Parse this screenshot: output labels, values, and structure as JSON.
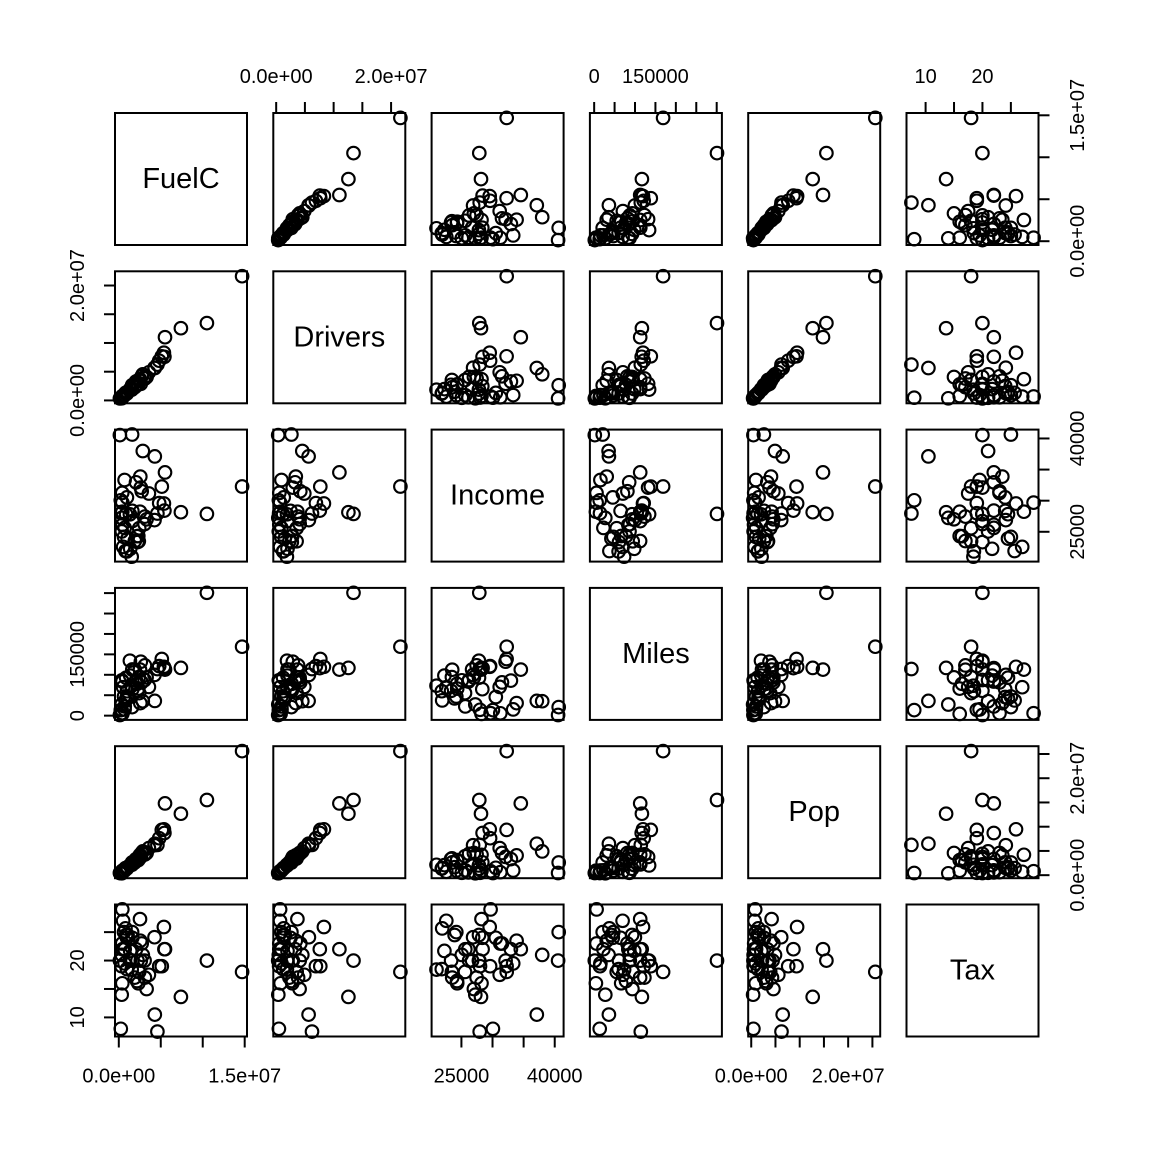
{
  "figure": {
    "background_color": "#ffffff",
    "foreground_color": "#000000",
    "description": "Scatterplot matrix (pairs plot) of six variables"
  },
  "chart_data": {
    "type": "scatter-matrix",
    "grid": 6,
    "point_style": {
      "shape": "open-circle",
      "color": "#000000",
      "radius_px": 6.3
    },
    "axis_padding_fraction": 0.04,
    "legend": "none",
    "variables": [
      {
        "name": "FuelC",
        "x_axis_side": "bottom",
        "y_axis_side": "right",
        "ticks": [
          {
            "value": 0,
            "label": "0.0e+00"
          },
          {
            "value": 5000000
          },
          {
            "value": 10000000
          },
          {
            "value": 15000000,
            "label": "1.5e+07"
          }
        ]
      },
      {
        "name": "Drivers",
        "x_axis_side": "top",
        "y_axis_side": "left",
        "ticks": [
          {
            "value": 0,
            "label": "0.0e+00"
          },
          {
            "value": 5000000
          },
          {
            "value": 10000000
          },
          {
            "value": 15000000
          },
          {
            "value": 20000000,
            "label": "2.0e+07"
          }
        ]
      },
      {
        "name": "Income",
        "x_axis_side": "bottom",
        "y_axis_side": "right",
        "ticks": [
          {
            "value": 25000,
            "label": "25000"
          },
          {
            "value": 30000
          },
          {
            "value": 35000
          },
          {
            "value": 40000,
            "label": "40000"
          }
        ]
      },
      {
        "name": "Miles",
        "x_axis_side": "top",
        "y_axis_side": "left",
        "ticks": [
          {
            "value": 0,
            "label": "0"
          },
          {
            "value": 50000
          },
          {
            "value": 100000
          },
          {
            "value": 150000,
            "label": "150000"
          },
          {
            "value": 200000
          },
          {
            "value": 250000
          },
          {
            "value": 300000
          }
        ]
      },
      {
        "name": "Pop",
        "x_axis_side": "bottom",
        "y_axis_side": "right",
        "ticks": [
          {
            "value": 0,
            "label": "0.0e+00"
          },
          {
            "value": 5000000
          },
          {
            "value": 10000000
          },
          {
            "value": 15000000
          },
          {
            "value": 20000000,
            "label": "2.0e+07"
          },
          {
            "value": 25000000
          }
        ]
      },
      {
        "name": "Tax",
        "x_axis_side": "top",
        "y_axis_side": "left",
        "ticks": [
          {
            "value": 10,
            "label": "10"
          },
          {
            "value": 15
          },
          {
            "value": 20,
            "label": "20"
          },
          {
            "value": 25
          }
        ]
      }
    ],
    "columns": [
      "FuelC",
      "Drivers",
      "Income",
      "Miles",
      "Pop",
      "Tax"
    ],
    "observations": [
      [
        2382507,
        3559897,
        23471,
        94440,
        3451586,
        18.0
      ],
      [
        235400,
        472211,
        30064,
        13628,
        457728,
        8.0
      ],
      [
        2428430,
        3550367,
        25578,
        55245,
        3907526,
        18.0
      ],
      [
        1358174,
        1961883,
        22257,
        98132,
        2072622,
        21.7
      ],
      [
        14691753,
        21623793,
        32275,
        168771,
        25599275,
        18.0
      ],
      [
        2048664,
        3287922,
        32949,
        85854,
        3322455,
        22.0
      ],
      [
        1583590,
        2651643,
        40640,
        20910,
        2608903,
        25.0
      ],
      [
        411066,
        545204,
        31255,
        5814,
        610212,
        23.0
      ],
      [
        130000,
        349344,
        40539,
        1534,
        453358,
        20.0
      ],
      [
        7400000,
        12570420,
        28145,
        116758,
        12679483,
        13.6
      ],
      [
        4600000,
        6230871,
        27940,
        114139,
        6250687,
        7.5
      ],
      [
        412599,
        770874,
        28221,
        4176,
        927206,
        16.0
      ],
      [
        621165,
        894866,
        24180,
        46811,
        958422,
        25.0
      ],
      [
        5122527,
        7674472,
        32259,
        138589,
        9348269,
        19.0
      ],
      [
        3314654,
        4076000,
        27011,
        93507,
        4577741,
        15.0
      ],
      [
        1611364,
        1973794,
        26723,
        112857,
        2220570,
        20.0
      ],
      [
        1317341,
        1886954,
        27816,
        134618,
        2007776,
        20.0
      ],
      [
        2164478,
        2708973,
        24294,
        77899,
        3046951,
        16.4
      ],
      [
        2232103,
        2719495,
        23334,
        60855,
        3335997,
        20.0
      ],
      [
        700674,
        915053,
        25623,
        22699,
        1012945,
        22.0
      ],
      [
        2555877,
        3420000,
        33872,
        30577,
        4085942,
        23.5
      ],
      [
        2855469,
        4549934,
        37992,
        35234,
        4902871,
        21.0
      ],
      [
        4810450,
        6915689,
        29612,
        121273,
        7618599,
        19.0
      ],
      [
        2621070,
        2893047,
        32101,
        132048,
        3774909,
        20.0
      ],
      [
        1537746,
        1860000,
        20993,
        73301,
        2137505,
        18.4
      ],
      [
        3107134,
        3820000,
        27445,
        123039,
        4288136,
        17.0
      ],
      [
        512744,
        660000,
        22569,
        69567,
        697707,
        27.0
      ],
      [
        865616,
        1200000,
        27829,
        92791,
        1307699,
        24.5
      ],
      [
        967336,
        1300000,
        30529,
        45683,
        1521793,
        24.0
      ],
      [
        687249,
        920000,
        33332,
        15250,
        959234,
        19.5
      ],
      [
        4288428,
        5648000,
        37112,
        36165,
        6483416,
        10.5
      ],
      [
        963741,
        1200000,
        21853,
        59927,
        1373478,
        18.5
      ],
      [
        5500000,
        11000000,
        34547,
        112747,
        14805121,
        22.0
      ],
      [
        4258392,
        5700000,
        26882,
        99813,
        6189304,
        24.1
      ],
      [
        357441,
        450000,
        25068,
        86609,
        481351,
        21.0
      ],
      [
        5433138,
        7600000,
        28400,
        116397,
        8707999,
        22.0
      ],
      [
        1902982,
        2300000,
        23517,
        112467,
        2633365,
        17.0
      ],
      [
        1610000,
        2500000,
        28350,
        64823,
        2662078,
        24.0
      ],
      [
        5378367,
        8300000,
        29539,
        119642,
        9454143,
        25.9
      ],
      [
        422179,
        680000,
        29685,
        6052,
        812414,
        29.0
      ],
      [
        2325600,
        2800000,
        24321,
        66248,
        3111879,
        16.0
      ],
      [
        436855,
        540000,
        26115,
        83471,
        577303,
        22.0
      ],
      [
        3079222,
        4100000,
        26239,
        87297,
        4414567,
        20.0
      ],
      [
        10500000,
        13462976,
        27871,
        300767,
        15512496,
        20.0
      ],
      [
        1044298,
        1500000,
        23907,
        42201,
        1652563,
        24.5
      ],
      [
        328323,
        500000,
        27992,
        14273,
        479287,
        19.0
      ],
      [
        3584428,
        4900000,
        31162,
        70278,
        5589911,
        17.5
      ],
      [
        2727343,
        4200000,
        31528,
        81411,
        4576100,
        23.0
      ],
      [
        803904,
        1300000,
        21915,
        37331,
        1455011,
        25.65
      ],
      [
        2521215,
        3700000,
        28232,
        112639,
        4200631,
        27.3
      ],
      [
        350624,
        370000,
        27230,
        27301,
        383272,
        14.0
      ]
    ]
  }
}
